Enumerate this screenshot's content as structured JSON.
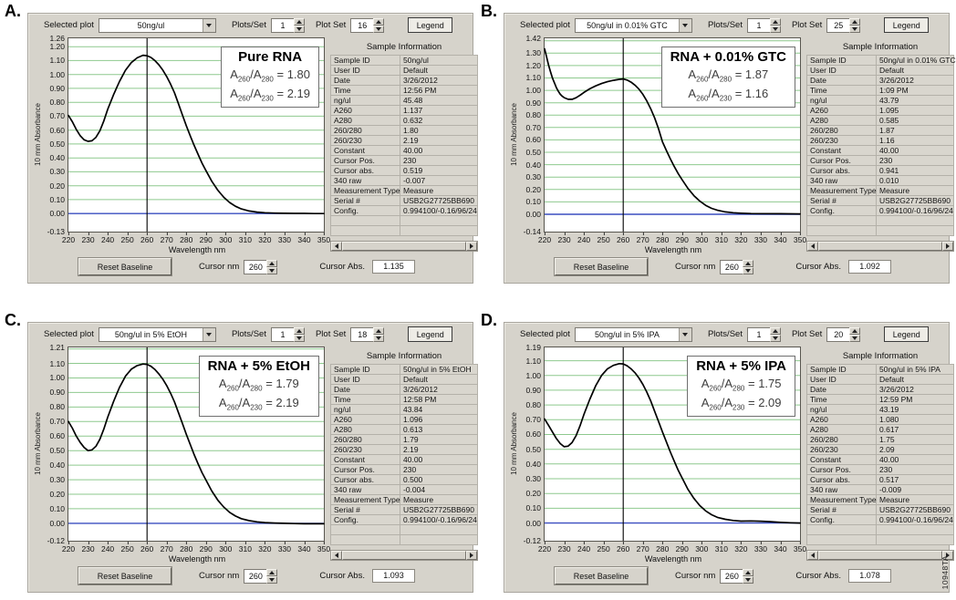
{
  "figure": {
    "code": "10948TA"
  },
  "shared": {
    "toolbar": {
      "selected_plot_label": "Selected plot",
      "plots_per_set_label": "Plots/Set",
      "plot_set_label": "Plot Set",
      "legend_label": "Legend"
    },
    "info_title": "Sample Information",
    "bottom": {
      "reset_label": "Reset Baseline",
      "cursor_nm_label": "Cursor nm",
      "cursor_abs_label": "Cursor Abs."
    },
    "colors": {
      "grid_green": "#8ec98e",
      "baseline_blue": "#3a4ec0",
      "curve": "#000000",
      "window_gray": "#d6d3cb"
    }
  },
  "panels": [
    {
      "letter": "A.",
      "selected_plot": "50ng/ul",
      "plots_per_set": "1",
      "plot_set": "16",
      "cursor_nm": "260",
      "cursor_abs": "1.135",
      "annotation_lines": [
        [
          [
            "t",
            "A"
          ],
          [
            "s",
            "260"
          ],
          [
            "t",
            "/A"
          ],
          [
            "s",
            "280"
          ],
          [
            "t",
            " = 1.80"
          ]
        ],
        [
          [
            "t",
            "A"
          ],
          [
            "s",
            "260"
          ],
          [
            "t",
            "/A"
          ],
          [
            "s",
            "230"
          ],
          [
            "t",
            " = 2.19"
          ]
        ]
      ],
      "info_rows": [
        [
          "Sample ID",
          "50ng/ul"
        ],
        [
          "User ID",
          "Default"
        ],
        [
          "Date",
          "3/26/2012"
        ],
        [
          "Time",
          "12:56 PM"
        ],
        [
          "ng/ul",
          "45.48"
        ],
        [
          "A260",
          "1.137"
        ],
        [
          "A280",
          "0.632"
        ],
        [
          "260/280",
          "1.80"
        ],
        [
          "260/230",
          "2.19"
        ],
        [
          "Constant",
          "40.00"
        ],
        [
          "Cursor Pos.",
          "230"
        ],
        [
          "Cursor abs.",
          "0.519"
        ],
        [
          "340 raw",
          "-0.007"
        ],
        [
          "Measurement Type",
          "Measure"
        ],
        [
          "Serial #",
          "USB2G27725BB690"
        ],
        [
          "Config.",
          "0.994100/-0.16/96/24"
        ]
      ]
    },
    {
      "letter": "B.",
      "selected_plot": "50ng/ul in 0.01% GTC",
      "plots_per_set": "1",
      "plot_set": "25",
      "cursor_nm": "260",
      "cursor_abs": "1.092",
      "annotation_lines": [
        [
          [
            "t",
            "A"
          ],
          [
            "s",
            "260"
          ],
          [
            "t",
            "/A"
          ],
          [
            "s",
            "280"
          ],
          [
            "t",
            " = 1.87"
          ]
        ],
        [
          [
            "t",
            "A"
          ],
          [
            "s",
            "260"
          ],
          [
            "t",
            "/A"
          ],
          [
            "s",
            "230"
          ],
          [
            "t",
            " = 1.16"
          ]
        ]
      ],
      "info_rows": [
        [
          "Sample ID",
          "50ng/ul in 0.01% GTC"
        ],
        [
          "User ID",
          "Default"
        ],
        [
          "Date",
          "3/26/2012"
        ],
        [
          "Time",
          "1:09 PM"
        ],
        [
          "ng/ul",
          "43.79"
        ],
        [
          "A260",
          "1.095"
        ],
        [
          "A280",
          "0.585"
        ],
        [
          "260/280",
          "1.87"
        ],
        [
          "260/230",
          "1.16"
        ],
        [
          "Constant",
          "40.00"
        ],
        [
          "Cursor Pos.",
          "230"
        ],
        [
          "Cursor abs.",
          "0.941"
        ],
        [
          "340 raw",
          "0.010"
        ],
        [
          "Measurement Type",
          "Measure"
        ],
        [
          "Serial #",
          "USB2G27725BB690"
        ],
        [
          "Config.",
          "0.994100/-0.16/96/24"
        ]
      ]
    },
    {
      "letter": "C.",
      "selected_plot": "50ng/ul in 5% EtOH",
      "plots_per_set": "1",
      "plot_set": "18",
      "cursor_nm": "260",
      "cursor_abs": "1.093",
      "annotation_lines": [
        [
          [
            "t",
            "A"
          ],
          [
            "s",
            "260"
          ],
          [
            "t",
            "/A"
          ],
          [
            "s",
            "280"
          ],
          [
            "t",
            " = 1.79"
          ]
        ],
        [
          [
            "t",
            "A"
          ],
          [
            "s",
            "260"
          ],
          [
            "t",
            "/A"
          ],
          [
            "s",
            "230"
          ],
          [
            "t",
            " = 2.19"
          ]
        ]
      ],
      "info_rows": [
        [
          "Sample ID",
          "50ng/ul in 5% EtOH"
        ],
        [
          "User ID",
          "Default"
        ],
        [
          "Date",
          "3/26/2012"
        ],
        [
          "Time",
          "12:58 PM"
        ],
        [
          "ng/ul",
          "43.84"
        ],
        [
          "A260",
          "1.096"
        ],
        [
          "A280",
          "0.613"
        ],
        [
          "260/280",
          "1.79"
        ],
        [
          "260/230",
          "2.19"
        ],
        [
          "Constant",
          "40.00"
        ],
        [
          "Cursor Pos.",
          "230"
        ],
        [
          "Cursor abs.",
          "0.500"
        ],
        [
          "340 raw",
          "-0.004"
        ],
        [
          "Measurement Type",
          "Measure"
        ],
        [
          "Serial #",
          "USB2G27725BB690"
        ],
        [
          "Config.",
          "0.994100/-0.16/96/24"
        ]
      ]
    },
    {
      "letter": "D.",
      "selected_plot": "50ng/ul in 5% IPA",
      "plots_per_set": "1",
      "plot_set": "20",
      "cursor_nm": "260",
      "cursor_abs": "1.078",
      "annotation_lines": [
        [
          [
            "t",
            "A"
          ],
          [
            "s",
            "260"
          ],
          [
            "t",
            "/A"
          ],
          [
            "s",
            "280"
          ],
          [
            "t",
            " = 1.75"
          ]
        ],
        [
          [
            "t",
            "A"
          ],
          [
            "s",
            "260"
          ],
          [
            "t",
            "/A"
          ],
          [
            "s",
            "230"
          ],
          [
            "t",
            " = 2.09"
          ]
        ]
      ],
      "info_rows": [
        [
          "Sample ID",
          "50ng/ul in 5% IPA"
        ],
        [
          "User ID",
          "Default"
        ],
        [
          "Date",
          "3/26/2012"
        ],
        [
          "Time",
          "12:59 PM"
        ],
        [
          "ng/ul",
          "43.19"
        ],
        [
          "A260",
          "1.080"
        ],
        [
          "A280",
          "0.617"
        ],
        [
          "260/280",
          "1.75"
        ],
        [
          "260/230",
          "2.09"
        ],
        [
          "Constant",
          "40.00"
        ],
        [
          "Cursor Pos.",
          "230"
        ],
        [
          "Cursor abs.",
          "0.517"
        ],
        [
          "340 raw",
          "-0.009"
        ],
        [
          "Measurement Type",
          "Measure"
        ],
        [
          "Serial #",
          "USB2G27725BB690"
        ],
        [
          "Config.",
          "0.994100/-0.16/96/24"
        ]
      ]
    }
  ],
  "chart_data": [
    {
      "type": "line",
      "title": "Pure RNA",
      "xlabel": "Wavelength nm",
      "ylabel": "10 mm Absorbance",
      "xlim": [
        220,
        350
      ],
      "ylim": [
        -0.13,
        1.26
      ],
      "x_ticks": [
        220,
        230,
        240,
        250,
        260,
        270,
        280,
        290,
        300,
        310,
        320,
        330,
        340,
        350
      ],
      "y_ticks": [
        "1.26",
        "1.20",
        "1.10",
        "1.00",
        "0.90",
        "0.80",
        "0.70",
        "0.60",
        "0.50",
        "0.40",
        "0.30",
        "0.20",
        "0.10",
        "0.00",
        "-0.13"
      ],
      "y_gridlines": [
        1.2,
        1.1,
        1.0,
        0.9,
        0.8,
        0.7,
        0.6,
        0.5,
        0.4,
        0.3,
        0.2,
        0.1
      ],
      "cursor_x": 260,
      "x": [
        220,
        222,
        224,
        226,
        228,
        230,
        232,
        234,
        236,
        238,
        240,
        243,
        246,
        249,
        252,
        255,
        258,
        260,
        262,
        264,
        266,
        268,
        270,
        272,
        274,
        276,
        278,
        280,
        282,
        284,
        286,
        288,
        290,
        293,
        296,
        299,
        302,
        305,
        308,
        312,
        316,
        320,
        325,
        330,
        335,
        340,
        345,
        350
      ],
      "y": [
        0.705,
        0.66,
        0.605,
        0.56,
        0.53,
        0.519,
        0.523,
        0.548,
        0.595,
        0.665,
        0.75,
        0.855,
        0.95,
        1.03,
        1.085,
        1.12,
        1.138,
        1.135,
        1.122,
        1.1,
        1.07,
        1.032,
        0.985,
        0.93,
        0.868,
        0.79,
        0.71,
        0.632,
        0.56,
        0.49,
        0.425,
        0.362,
        0.308,
        0.232,
        0.168,
        0.118,
        0.08,
        0.052,
        0.033,
        0.018,
        0.01,
        0.006,
        0.003,
        0.002,
        0.001,
        0.001,
        0.0,
        0.0
      ]
    },
    {
      "type": "line",
      "title": "RNA + 0.01% GTC",
      "xlabel": "Wavelength nm",
      "ylabel": "10 mm Absorbance",
      "xlim": [
        220,
        350
      ],
      "ylim": [
        -0.14,
        1.42
      ],
      "x_ticks": [
        220,
        230,
        240,
        250,
        260,
        270,
        280,
        290,
        300,
        310,
        320,
        330,
        340,
        350
      ],
      "y_ticks": [
        "1.42",
        "1.30",
        "1.20",
        "1.10",
        "1.00",
        "0.90",
        "0.80",
        "0.70",
        "0.60",
        "0.50",
        "0.40",
        "0.30",
        "0.20",
        "0.10",
        "0.00",
        "-0.14"
      ],
      "y_gridlines": [
        1.4,
        1.3,
        1.2,
        1.1,
        1.0,
        0.9,
        0.8,
        0.7,
        0.6,
        0.5,
        0.4,
        0.3,
        0.2,
        0.1
      ],
      "cursor_x": 260,
      "x": [
        220,
        221,
        222,
        223,
        224,
        225,
        226,
        227,
        228,
        229,
        230,
        232,
        234,
        236,
        238,
        240,
        243,
        246,
        249,
        252,
        255,
        258,
        260,
        262,
        264,
        266,
        268,
        270,
        272,
        274,
        276,
        278,
        280,
        282,
        284,
        286,
        288,
        290,
        293,
        296,
        299,
        302,
        305,
        308,
        312,
        316,
        320,
        325,
        330,
        340,
        350
      ],
      "y": [
        1.335,
        1.27,
        1.205,
        1.15,
        1.1,
        1.06,
        1.022,
        0.992,
        0.968,
        0.952,
        0.941,
        0.928,
        0.928,
        0.94,
        0.96,
        0.983,
        1.012,
        1.036,
        1.055,
        1.07,
        1.081,
        1.089,
        1.092,
        1.083,
        1.066,
        1.042,
        1.01,
        0.968,
        0.915,
        0.852,
        0.778,
        0.69,
        0.585,
        0.515,
        0.448,
        0.385,
        0.328,
        0.278,
        0.208,
        0.15,
        0.106,
        0.072,
        0.048,
        0.032,
        0.019,
        0.012,
        0.009,
        0.006,
        0.005,
        0.004,
        0.003
      ]
    },
    {
      "type": "line",
      "title": "RNA + 5% EtOH",
      "xlabel": "Wavelength nm",
      "ylabel": "10 mm Absorbance",
      "xlim": [
        220,
        350
      ],
      "ylim": [
        -0.12,
        1.21
      ],
      "x_ticks": [
        220,
        230,
        240,
        250,
        260,
        270,
        280,
        290,
        300,
        310,
        320,
        330,
        340,
        350
      ],
      "y_ticks": [
        "1.21",
        "1.10",
        "1.00",
        "0.90",
        "0.80",
        "0.70",
        "0.60",
        "0.50",
        "0.40",
        "0.30",
        "0.20",
        "0.10",
        "0.00",
        "-0.12"
      ],
      "y_gridlines": [
        1.2,
        1.1,
        1.0,
        0.9,
        0.8,
        0.7,
        0.6,
        0.5,
        0.4,
        0.3,
        0.2,
        0.1
      ],
      "cursor_x": 260,
      "x": [
        220,
        222,
        224,
        226,
        228,
        230,
        232,
        234,
        236,
        238,
        240,
        243,
        246,
        249,
        252,
        255,
        258,
        260,
        262,
        264,
        266,
        268,
        270,
        272,
        274,
        276,
        278,
        280,
        282,
        284,
        286,
        288,
        290,
        293,
        296,
        299,
        302,
        305,
        308,
        312,
        316,
        320,
        325,
        330,
        335,
        340,
        345,
        350
      ],
      "y": [
        0.7,
        0.655,
        0.6,
        0.556,
        0.522,
        0.5,
        0.505,
        0.53,
        0.578,
        0.648,
        0.73,
        0.838,
        0.935,
        1.012,
        1.06,
        1.085,
        1.096,
        1.093,
        1.08,
        1.058,
        1.028,
        0.992,
        0.948,
        0.895,
        0.835,
        0.762,
        0.688,
        0.613,
        0.543,
        0.473,
        0.408,
        0.348,
        0.297,
        0.222,
        0.16,
        0.112,
        0.076,
        0.05,
        0.032,
        0.018,
        0.01,
        0.005,
        0.002,
        0.0,
        -0.002,
        -0.003,
        -0.003,
        -0.003
      ]
    },
    {
      "type": "line",
      "title": "RNA + 5% IPA",
      "xlabel": "Wavelength nm",
      "ylabel": "10 mm Absorbance",
      "xlim": [
        220,
        350
      ],
      "ylim": [
        -0.12,
        1.19
      ],
      "x_ticks": [
        220,
        230,
        240,
        250,
        260,
        270,
        280,
        290,
        300,
        310,
        320,
        330,
        340,
        350
      ],
      "y_ticks": [
        "1.19",
        "1.10",
        "1.00",
        "0.90",
        "0.80",
        "0.70",
        "0.60",
        "0.50",
        "0.40",
        "0.30",
        "0.20",
        "0.10",
        "0.00",
        "-0.12"
      ],
      "y_gridlines": [
        1.1,
        1.0,
        0.9,
        0.8,
        0.7,
        0.6,
        0.5,
        0.4,
        0.3,
        0.2,
        0.1
      ],
      "cursor_x": 260,
      "x": [
        220,
        222,
        224,
        226,
        228,
        230,
        232,
        234,
        236,
        238,
        240,
        243,
        246,
        249,
        252,
        255,
        258,
        260,
        262,
        264,
        266,
        268,
        270,
        272,
        274,
        276,
        278,
        280,
        282,
        284,
        286,
        288,
        290,
        293,
        296,
        299,
        302,
        305,
        308,
        312,
        316,
        320,
        325,
        330,
        335,
        340,
        345,
        350
      ],
      "y": [
        0.705,
        0.662,
        0.617,
        0.573,
        0.538,
        0.517,
        0.521,
        0.546,
        0.592,
        0.658,
        0.735,
        0.838,
        0.93,
        1.0,
        1.045,
        1.068,
        1.08,
        1.078,
        1.065,
        1.045,
        1.018,
        0.983,
        0.94,
        0.888,
        0.828,
        0.758,
        0.688,
        0.617,
        0.55,
        0.482,
        0.418,
        0.357,
        0.305,
        0.228,
        0.167,
        0.118,
        0.082,
        0.056,
        0.038,
        0.025,
        0.017,
        0.013,
        0.014,
        0.012,
        0.009,
        0.005,
        0.002,
        0.0
      ]
    }
  ]
}
